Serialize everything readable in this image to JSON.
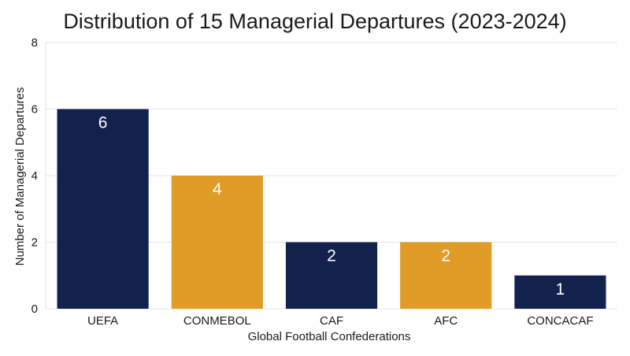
{
  "chart_data": {
    "type": "bar",
    "title": "Distribution of 15 Managerial Departures (2023-2024)",
    "xlabel": "Global Football Confederations",
    "ylabel": "Number of Managerial Departures",
    "categories": [
      "UEFA",
      "CONMEBOL",
      "CAF",
      "AFC",
      "CONCACAF"
    ],
    "values": [
      6,
      4,
      2,
      2,
      1
    ],
    "data_labels": [
      "6",
      "4",
      "2",
      "2",
      "1"
    ],
    "bar_colors": [
      "#13214d",
      "#e09c26",
      "#13214d",
      "#e09c26",
      "#13214d"
    ],
    "label_color": "#ffffff",
    "grid_color": "#e6e6e6",
    "ylim": [
      0,
      8
    ],
    "yticks": [
      0,
      2,
      4,
      6,
      8
    ],
    "ytick_labels": [
      "0",
      "2",
      "4",
      "6",
      "8"
    ],
    "grid": true,
    "legend": "none"
  }
}
